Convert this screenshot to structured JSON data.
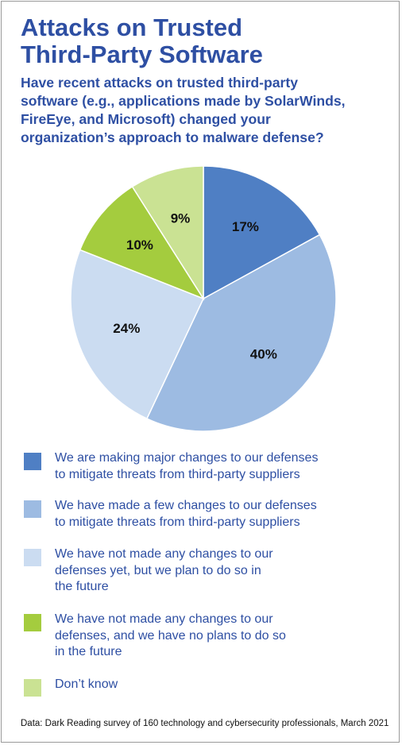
{
  "title_line1": "Attacks on Trusted",
  "title_line2": "Third-Party Software",
  "subtitle_lines": [
    "Have recent attacks on trusted third-party",
    "software (e.g., applications made by SolarWinds,",
    "FireEye, and Microsoft) changed your",
    "organization’s approach to malware defense?"
  ],
  "chart_data": {
    "type": "pie",
    "title": "Attacks on Trusted Third-Party Software",
    "subtitle": "Have recent attacks on trusted third-party software (e.g., applications made by SolarWinds, FireEye, and Microsoft) changed your organization’s approach to malware defense?",
    "unit": "%",
    "start": "12 o'clock",
    "direction": "clockwise",
    "slices": [
      {
        "value": 17,
        "label": "17%",
        "legend_lines": [
          "We are making major changes to our defenses",
          "to mitigate threats from third-party suppliers"
        ],
        "color": "#4f7fc4"
      },
      {
        "value": 40,
        "label": "40%",
        "legend_lines": [
          "We have made a few changes to our defenses",
          "to mitigate threats from third-party suppliers"
        ],
        "color": "#9dbbe2"
      },
      {
        "value": 24,
        "label": "24%",
        "legend_lines": [
          "We have not made any changes to our",
          "defenses yet, but we plan to do so in",
          "the future"
        ],
        "color": "#cbdcf1"
      },
      {
        "value": 10,
        "label": "10%",
        "legend_lines": [
          "We have not made any changes to our",
          "defenses, and we have no plans to do so",
          "in the future"
        ],
        "color": "#a4cc3e"
      },
      {
        "value": 9,
        "label": "9%",
        "legend_lines": [
          "Don’t know"
        ],
        "color": "#cae293"
      }
    ]
  },
  "source": "Data: Dark Reading survey of 160 technology and cybersecurity professionals, March 2021"
}
